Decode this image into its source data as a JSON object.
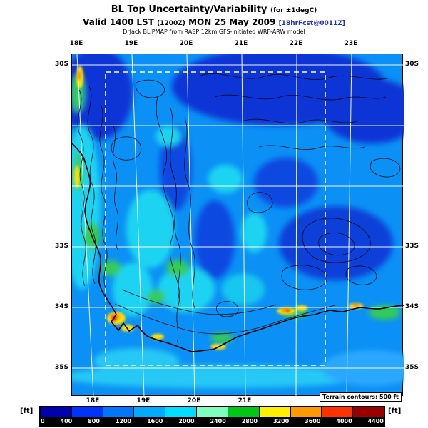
{
  "header": {
    "title": "BL Top Uncertainty/Variability",
    "title_note": "(for ±1degC)",
    "valid_prefix": "Valid 1400 LST",
    "valid_zulu": "(1200Z)",
    "valid_date": "MON 25 May 2009",
    "forecast_tag": "[18hrFcst@0011Z]",
    "model_line": "DrJack BLIPMAP from RASP 12km GFS-initiated WRF-ARW model"
  },
  "map": {
    "top_lon_labels": [
      "18E",
      "19E",
      "20E",
      "21E",
      "22E",
      "23E"
    ],
    "bottom_lon_labels": [
      "18E",
      "19E",
      "20E",
      "21E"
    ],
    "left_lat_labels": [
      "30S",
      "33S",
      "34S",
      "35S"
    ],
    "right_lat_labels": [
      "30S",
      "33S",
      "34S",
      "35S"
    ],
    "terrain_note": "Terrain contours: 500 ft"
  },
  "colorbar": {
    "unit_left": "[ft]",
    "unit_right": "[ft]",
    "tick_labels": [
      "0",
      "400",
      "800",
      "1200",
      "1600",
      "2000",
      "2400",
      "2800",
      "3200",
      "3600",
      "4000",
      "4400"
    ],
    "segment_colors": [
      "#0000b0",
      "#0033ff",
      "#0077ff",
      "#00aaff",
      "#00ddff",
      "#7dffc0",
      "#00c816",
      "#ffee00",
      "#ff9900",
      "#ff3300",
      "#990000"
    ]
  },
  "chart_data": {
    "type": "heatmap",
    "title": "BL Top Uncertainty/Variability (for ±1degC)",
    "valid": "1400 LST (1200Z) MON 25 May 2009",
    "model": "DrJack BLIPMAP from RASP 12km GFS-initiated WRF-ARW model",
    "units": "ft",
    "scale_ticks_ft": [
      0,
      400,
      800,
      1200,
      1600,
      2000,
      2400,
      2800,
      3200,
      3600,
      4000,
      4400
    ],
    "lon_labels": [
      "18E",
      "19E",
      "20E",
      "21E",
      "22E",
      "23E"
    ],
    "lat_labels": [
      "30S",
      "33S",
      "34S",
      "35S"
    ],
    "terrain_contour_interval_ft": 500,
    "legend_position": "bottom"
  }
}
